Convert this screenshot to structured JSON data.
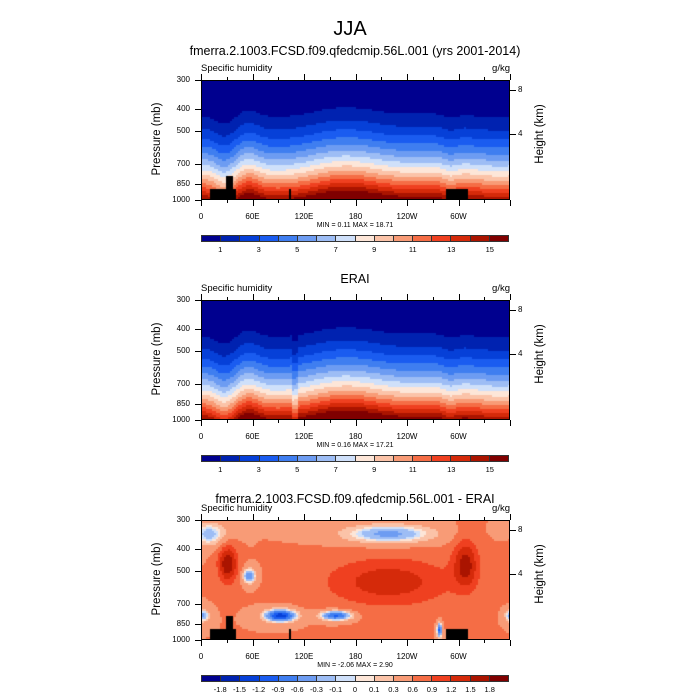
{
  "main_title": "JJA",
  "colors": {
    "cmap": [
      "#00008f",
      "#0022b0",
      "#0640d8",
      "#1a5cf0",
      "#3f7ef0",
      "#6d9cf2",
      "#9dbdf5",
      "#cfe0fa",
      "#fde6d8",
      "#fbc3a8",
      "#f89b76",
      "#f56d45",
      "#ef4020",
      "#d52a0a",
      "#aa1400",
      "#800000"
    ],
    "terrain": "#000000"
  },
  "chart_data": [
    {
      "type": "heatmap",
      "title": "fmerra.2.1003.FCSD.f09.qfedcmip.56L.001 (yrs 2001-2014)",
      "left_label": "Specific humidity",
      "units": "g/kg",
      "ylabel": "Pressure (mb)",
      "ylabel_right": "Height (km)",
      "xticks": [
        "0",
        "60E",
        "120E",
        "180",
        "120W",
        "60W"
      ],
      "yticks": [
        "300",
        "400",
        "500",
        "700",
        "850",
        "1000"
      ],
      "yticks_right": [
        "8",
        "4"
      ],
      "min": "0.11",
      "max": "18.71",
      "minmax_text": "MIN =   0.11  MAX =  18.71",
      "colorbar_labels": [
        "1",
        "3",
        "5",
        "7",
        "9",
        "11",
        "13",
        "15"
      ],
      "levels": [
        1,
        2,
        3,
        4,
        5,
        6,
        7,
        8,
        9,
        10,
        11,
        12,
        13,
        14,
        15
      ]
    },
    {
      "type": "heatmap",
      "title": "ERAI",
      "left_label": "Specific humidity",
      "units": "g/kg",
      "ylabel": "Pressure (mb)",
      "ylabel_right": "Height (km)",
      "xticks": [
        "0",
        "60E",
        "120E",
        "180",
        "120W",
        "60W"
      ],
      "yticks": [
        "300",
        "400",
        "500",
        "700",
        "850",
        "1000"
      ],
      "yticks_right": [
        "8",
        "4"
      ],
      "min": "0.16",
      "max": "17.21",
      "minmax_text": "MIN =   0.16  MAX =  17.21",
      "colorbar_labels": [
        "1",
        "3",
        "5",
        "7",
        "9",
        "11",
        "13",
        "15"
      ],
      "levels": [
        1,
        2,
        3,
        4,
        5,
        6,
        7,
        8,
        9,
        10,
        11,
        12,
        13,
        14,
        15
      ]
    },
    {
      "type": "heatmap",
      "title": "fmerra.2.1003.FCSD.f09.qfedcmip.56L.001 - ERAI",
      "left_label": "Specific humidity",
      "units": "g/kg",
      "ylabel": "Pressure (mb)",
      "ylabel_right": "Height (km)",
      "xticks": [
        "0",
        "60E",
        "120E",
        "180",
        "120W",
        "60W"
      ],
      "yticks": [
        "300",
        "400",
        "500",
        "700",
        "850",
        "1000"
      ],
      "yticks_right": [
        "8",
        "4"
      ],
      "min": "-2.06",
      "max": "2.90",
      "minmax_text": "MIN =  -2.06  MAX =   2.90",
      "colorbar_labels": [
        "-1.8",
        "-1.5",
        "-1.2",
        "-0.9",
        "-0.6",
        "-0.3",
        "-0.1",
        "0",
        "0.1",
        "0.3",
        "0.6",
        "0.9",
        "1.2",
        "1.5",
        "1.8"
      ],
      "levels": [
        -1.8,
        -1.5,
        -1.2,
        -0.9,
        -0.6,
        -0.3,
        -0.1,
        0,
        0.1,
        0.3,
        0.6,
        0.9,
        1.2,
        1.5,
        1.8
      ]
    }
  ]
}
